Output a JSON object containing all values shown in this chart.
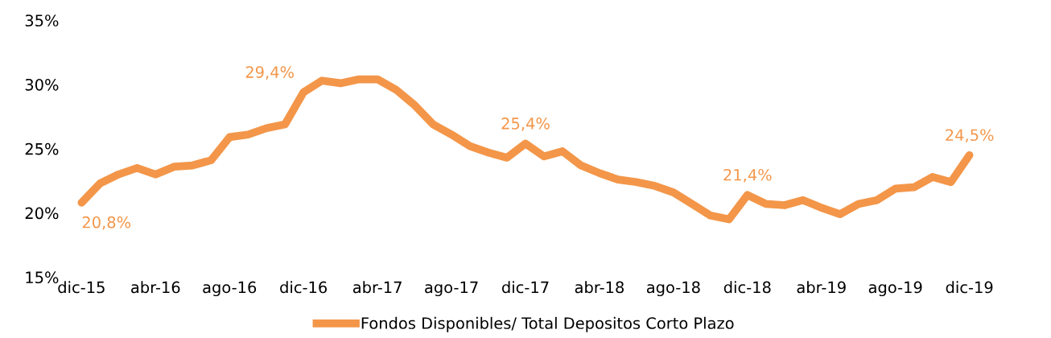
{
  "chart_data": {
    "type": "line",
    "categories": [
      "dic-15",
      null,
      null,
      null,
      "abr-16",
      null,
      null,
      null,
      "ago-16",
      null,
      null,
      null,
      "dic-16",
      null,
      null,
      null,
      "abr-17",
      null,
      null,
      null,
      "ago-17",
      null,
      null,
      null,
      "dic-17",
      null,
      null,
      null,
      "abr-18",
      null,
      null,
      null,
      "ago-18",
      null,
      null,
      null,
      "dic-18",
      null,
      null,
      null,
      "abr-19",
      null,
      null,
      null,
      "ago-19",
      null,
      null,
      null,
      "dic-19"
    ],
    "series": [
      {
        "name": "Fondos Disponibles/ Total Depositos Corto Plazo",
        "color": "#f39649",
        "values": [
          20.8,
          22.3,
          23.0,
          23.5,
          23.0,
          23.6,
          23.7,
          24.1,
          25.9,
          26.1,
          26.6,
          26.9,
          29.4,
          30.3,
          30.1,
          30.4,
          30.4,
          29.6,
          28.4,
          26.9,
          26.1,
          25.2,
          24.7,
          24.3,
          25.4,
          24.4,
          24.8,
          23.7,
          23.1,
          22.6,
          22.4,
          22.1,
          21.6,
          20.7,
          19.8,
          19.5,
          21.4,
          20.7,
          20.6,
          21.0,
          20.4,
          19.9,
          20.7,
          21.0,
          21.9,
          22.0,
          22.8,
          22.4,
          24.5
        ],
        "value_labels": [
          "20,8%",
          null,
          null,
          null,
          null,
          null,
          null,
          null,
          null,
          null,
          null,
          null,
          "29,4%",
          null,
          null,
          null,
          null,
          null,
          null,
          null,
          null,
          null,
          null,
          null,
          "25,4%",
          null,
          null,
          null,
          null,
          null,
          null,
          null,
          null,
          null,
          null,
          null,
          "21,4%",
          null,
          null,
          null,
          null,
          null,
          null,
          null,
          null,
          null,
          null,
          null,
          "24,5%"
        ]
      }
    ],
    "ylim": [
      15,
      35
    ],
    "yticks": [
      {
        "value": 15,
        "label": "15%"
      },
      {
        "value": 20,
        "label": "20%"
      },
      {
        "value": 25,
        "label": "25%"
      },
      {
        "value": 30,
        "label": "30%"
      },
      {
        "value": 35,
        "label": "35%"
      }
    ],
    "grid": false,
    "legend": "bottom",
    "marker": "none",
    "line_style": "solid"
  }
}
